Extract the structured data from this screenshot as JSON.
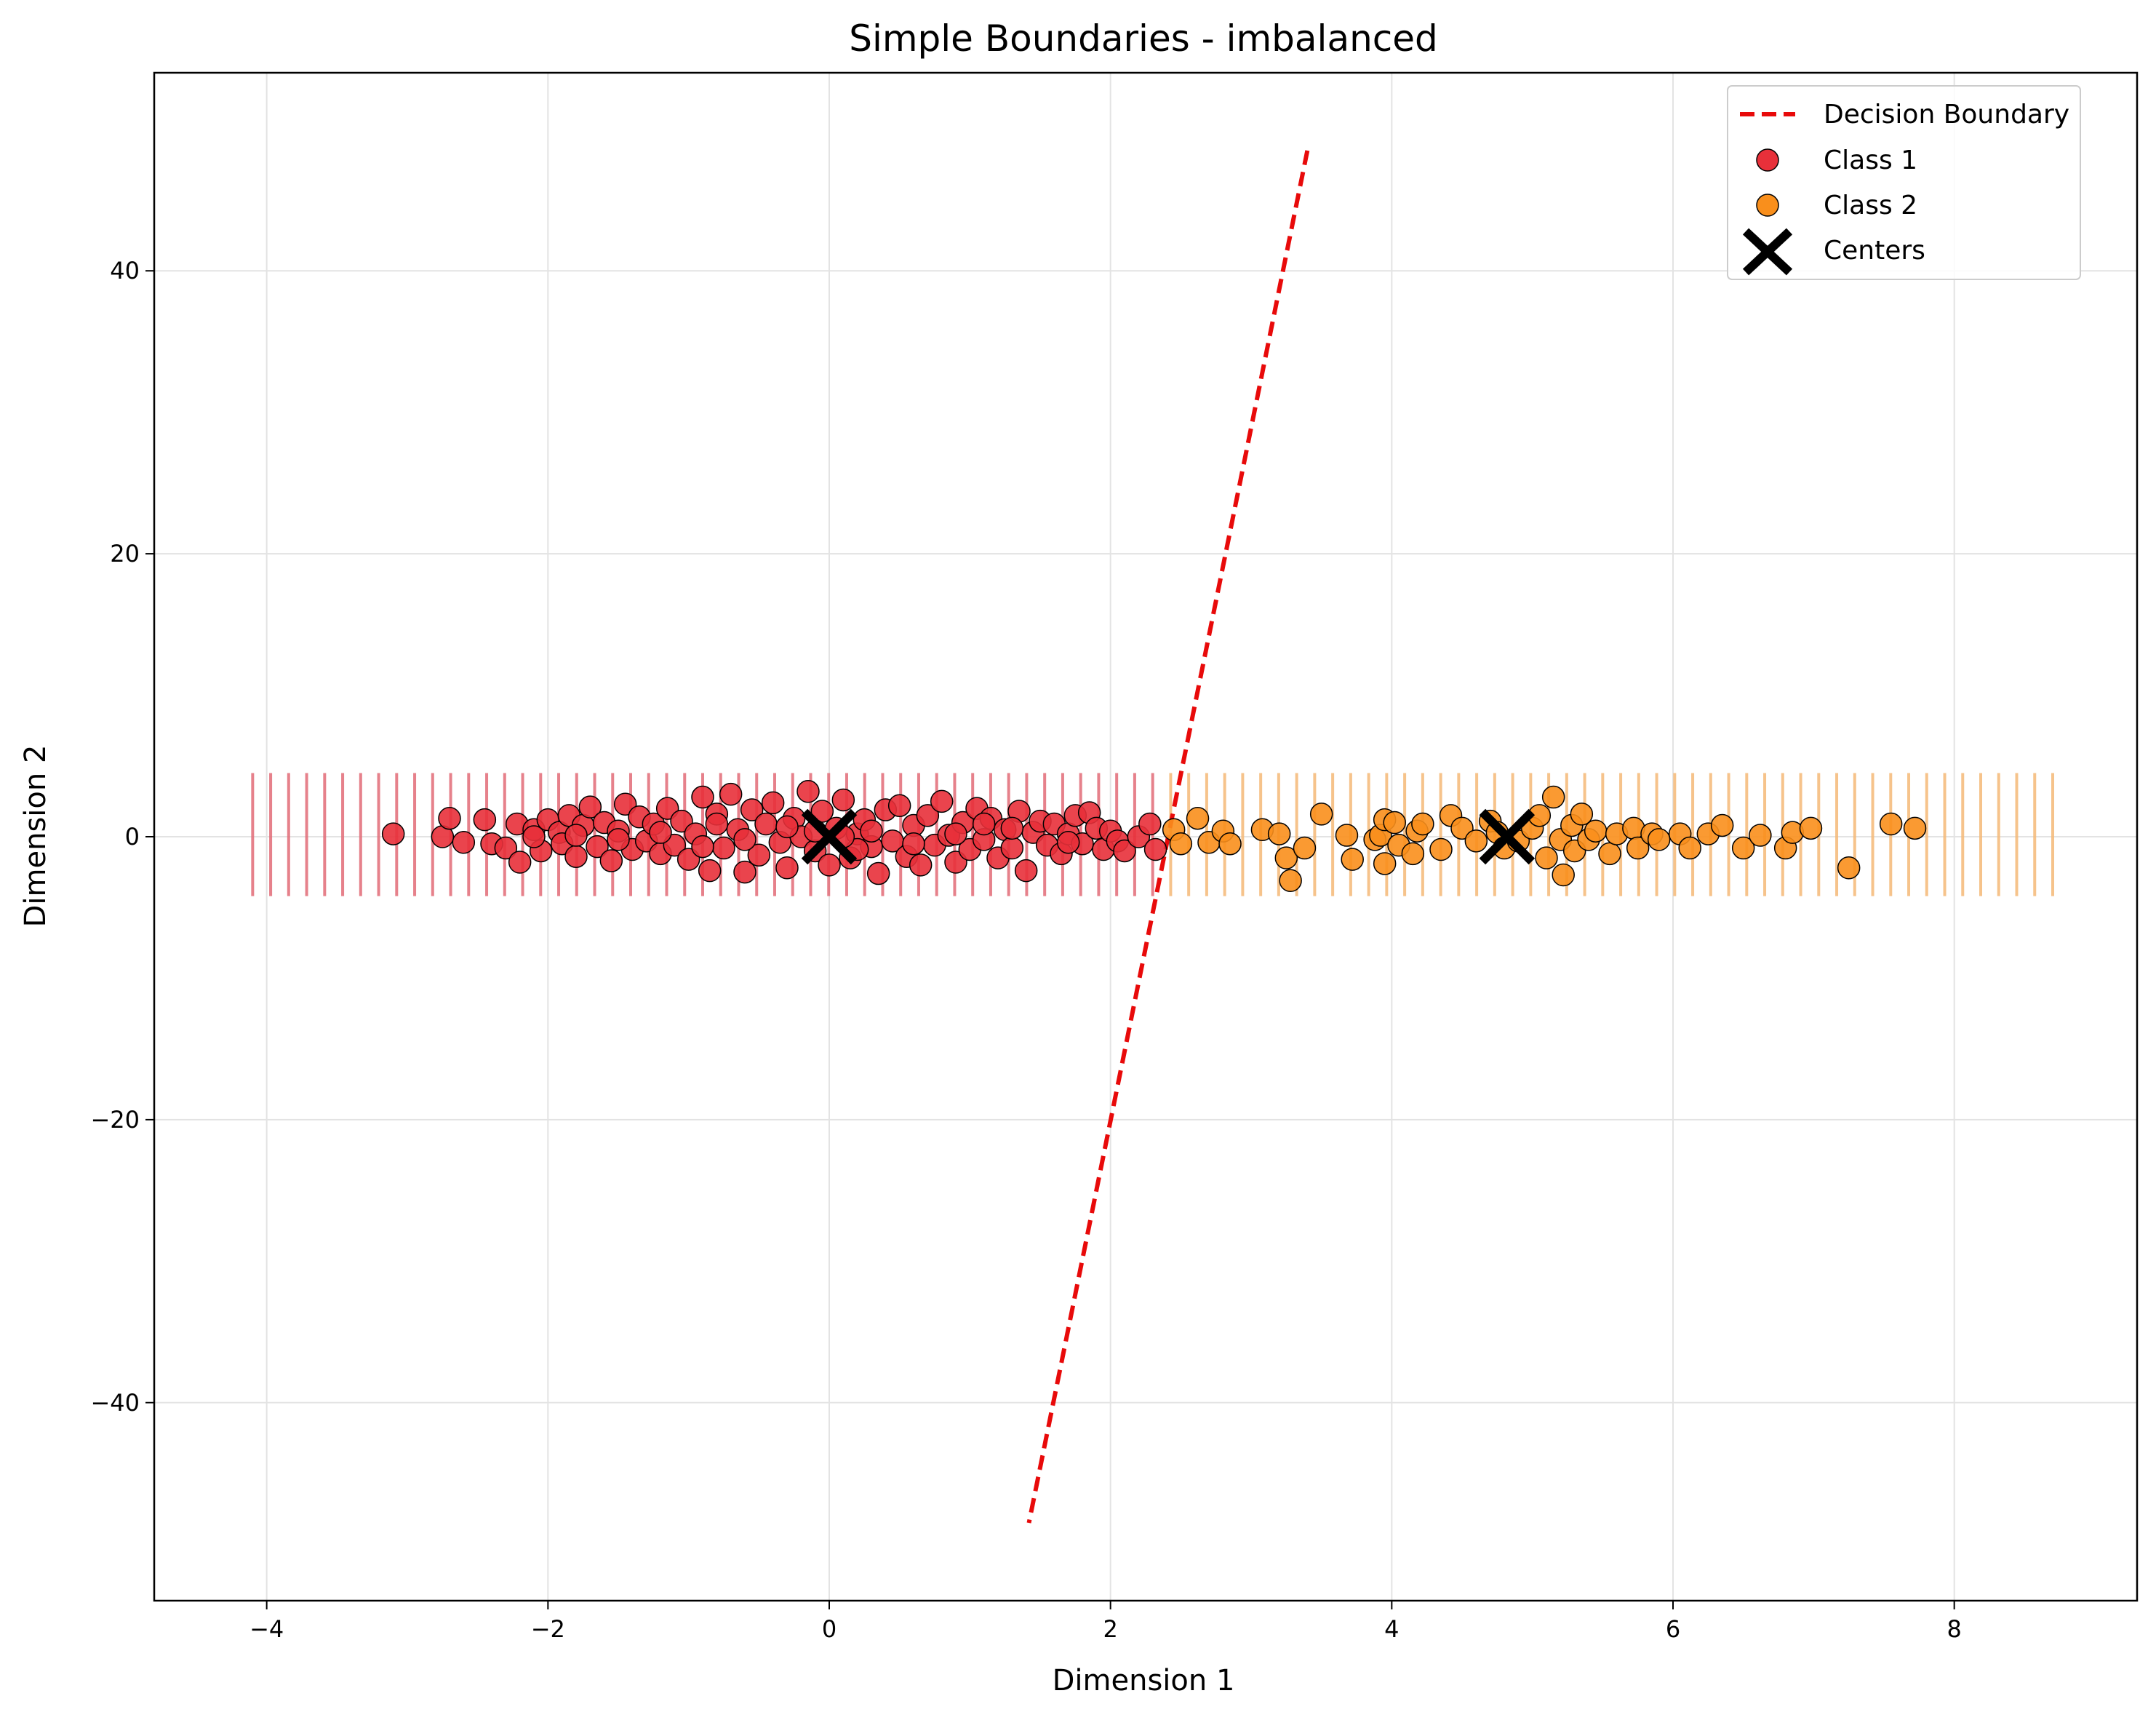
{
  "chart_data": {
    "type": "scatter",
    "title": "Simple Boundaries - imbalanced",
    "xlabel": "Dimension 1",
    "ylabel": "Dimension 2",
    "xlim": [
      -4.8,
      9.3
    ],
    "ylim": [
      -54,
      54
    ],
    "xticks": [
      -4,
      -2,
      0,
      2,
      4,
      6,
      8
    ],
    "yticks": [
      -40,
      -20,
      0,
      20,
      40
    ],
    "xtick_labels": [
      "−4",
      "−2",
      "0",
      "2",
      "4",
      "6",
      "8"
    ],
    "ytick_labels": [
      "−40",
      "−20",
      "0",
      "20",
      "40"
    ],
    "grid": true,
    "legend_position": "top-right",
    "region_shading": {
      "x_start": -4.1,
      "x_end": 8.7,
      "y_min": -4.2,
      "y_max": 4.5,
      "class1_until": 2.4,
      "class1_color": "#e26b77",
      "class2_color": "#f5b877"
    },
    "boundary": {
      "name": "Decision Boundary",
      "color": "#e80a0a",
      "points": [
        [
          3.4,
          48.5
        ],
        [
          1.42,
          -48.5
        ]
      ]
    },
    "series": [
      {
        "name": "Class 1",
        "color": "#e8303a",
        "points": [
          [
            -3.1,
            0.2
          ],
          [
            -2.75,
            0.0
          ],
          [
            -2.7,
            1.3
          ],
          [
            -2.6,
            -0.4
          ],
          [
            -2.45,
            1.2
          ],
          [
            -2.4,
            -0.5
          ],
          [
            -2.3,
            -0.8
          ],
          [
            -2.22,
            0.9
          ],
          [
            -2.2,
            -1.8
          ],
          [
            -2.1,
            0.5
          ],
          [
            -2.05,
            -1.0
          ],
          [
            -2.0,
            1.2
          ],
          [
            -1.92,
            0.3
          ],
          [
            -1.9,
            -0.5
          ],
          [
            -1.85,
            1.5
          ],
          [
            -1.8,
            -1.4
          ],
          [
            -1.75,
            0.8
          ],
          [
            -1.7,
            2.1
          ],
          [
            -1.65,
            -0.7
          ],
          [
            -1.6,
            1.0
          ],
          [
            -1.55,
            -1.7
          ],
          [
            -1.5,
            0.4
          ],
          [
            -1.45,
            2.3
          ],
          [
            -1.4,
            -0.9
          ],
          [
            -1.35,
            1.4
          ],
          [
            -1.3,
            -0.3
          ],
          [
            -1.25,
            0.9
          ],
          [
            -1.2,
            -1.2
          ],
          [
            -1.15,
            2.0
          ],
          [
            -1.1,
            -0.6
          ],
          [
            -1.05,
            1.1
          ],
          [
            -1.0,
            -1.6
          ],
          [
            -0.95,
            0.2
          ],
          [
            -0.9,
            2.8
          ],
          [
            -0.85,
            -2.4
          ],
          [
            -0.8,
            1.6
          ],
          [
            -0.75,
            -0.8
          ],
          [
            -0.7,
            3.0
          ],
          [
            -0.65,
            0.5
          ],
          [
            -0.6,
            -2.5
          ],
          [
            -0.55,
            1.9
          ],
          [
            -0.5,
            -1.3
          ],
          [
            -0.45,
            0.9
          ],
          [
            -0.4,
            2.4
          ],
          [
            -0.35,
            -0.4
          ],
          [
            -0.3,
            -2.2
          ],
          [
            -0.25,
            1.3
          ],
          [
            -0.2,
            0.0
          ],
          [
            -0.15,
            3.2
          ],
          [
            -0.1,
            -1.0
          ],
          [
            -0.05,
            1.8
          ],
          [
            0.0,
            -2.0
          ],
          [
            0.05,
            0.6
          ],
          [
            0.1,
            2.6
          ],
          [
            0.15,
            -1.5
          ],
          [
            0.2,
            0.2
          ],
          [
            0.25,
            1.2
          ],
          [
            0.3,
            -0.7
          ],
          [
            0.35,
            -2.6
          ],
          [
            0.4,
            1.9
          ],
          [
            0.45,
            -0.3
          ],
          [
            0.5,
            2.2
          ],
          [
            0.55,
            -1.4
          ],
          [
            0.6,
            0.8
          ],
          [
            0.65,
            -2.0
          ],
          [
            0.7,
            1.5
          ],
          [
            0.75,
            -0.6
          ],
          [
            0.8,
            2.5
          ],
          [
            0.85,
            0.1
          ],
          [
            0.9,
            -1.8
          ],
          [
            0.95,
            1.0
          ],
          [
            1.0,
            -0.9
          ],
          [
            1.05,
            2.0
          ],
          [
            1.1,
            -0.2
          ],
          [
            1.15,
            1.3
          ],
          [
            1.2,
            -1.5
          ],
          [
            1.25,
            0.5
          ],
          [
            1.3,
            -0.8
          ],
          [
            1.35,
            1.8
          ],
          [
            1.4,
            -2.4
          ],
          [
            1.45,
            0.3
          ],
          [
            1.5,
            1.1
          ],
          [
            1.55,
            -0.6
          ],
          [
            1.6,
            0.9
          ],
          [
            1.65,
            -1.2
          ],
          [
            1.7,
            0.2
          ],
          [
            1.75,
            1.5
          ],
          [
            1.8,
            -0.5
          ],
          [
            1.85,
            1.7
          ],
          [
            1.9,
            0.6
          ],
          [
            1.95,
            -0.9
          ],
          [
            2.0,
            0.4
          ],
          [
            2.05,
            -0.3
          ],
          [
            2.1,
            -1.0
          ],
          [
            2.2,
            0.0
          ],
          [
            2.28,
            0.9
          ],
          [
            2.32,
            -0.9
          ],
          [
            -1.8,
            0.1
          ],
          [
            -1.2,
            0.3
          ],
          [
            -0.6,
            -0.2
          ],
          [
            0.3,
            0.4
          ],
          [
            0.9,
            0.2
          ],
          [
            1.3,
            0.6
          ],
          [
            -0.3,
            0.7
          ],
          [
            0.6,
            -0.5
          ],
          [
            -1.5,
            -0.2
          ],
          [
            -0.9,
            -0.7
          ],
          [
            1.1,
            0.9
          ],
          [
            -2.1,
            0.0
          ],
          [
            1.7,
            -0.4
          ],
          [
            0.2,
            -0.9
          ],
          [
            -0.8,
            0.9
          ],
          [
            0.1,
            0.0
          ],
          [
            -0.1,
            0.4
          ]
        ]
      },
      {
        "name": "Class 2",
        "color": "#f98f1c",
        "points": [
          [
            2.45,
            0.5
          ],
          [
            2.5,
            -0.5
          ],
          [
            2.62,
            1.3
          ],
          [
            2.7,
            -0.4
          ],
          [
            2.8,
            0.4
          ],
          [
            2.85,
            -0.5
          ],
          [
            3.08,
            0.5
          ],
          [
            3.2,
            0.2
          ],
          [
            3.25,
            -1.5
          ],
          [
            3.28,
            -3.1
          ],
          [
            3.38,
            -0.8
          ],
          [
            3.5,
            1.6
          ],
          [
            3.68,
            0.1
          ],
          [
            3.72,
            -1.6
          ],
          [
            3.88,
            -0.2
          ],
          [
            3.92,
            0.1
          ],
          [
            3.95,
            -1.9
          ],
          [
            3.95,
            1.2
          ],
          [
            4.02,
            1.0
          ],
          [
            4.05,
            -0.6
          ],
          [
            4.15,
            -1.2
          ],
          [
            4.18,
            0.4
          ],
          [
            4.22,
            0.9
          ],
          [
            4.35,
            -0.9
          ],
          [
            4.42,
            1.5
          ],
          [
            4.5,
            0.6
          ],
          [
            4.6,
            -0.3
          ],
          [
            4.7,
            1.1
          ],
          [
            4.75,
            0.3
          ],
          [
            4.8,
            -0.8
          ],
          [
            4.9,
            -0.3
          ],
          [
            5.0,
            0.6
          ],
          [
            5.05,
            1.5
          ],
          [
            5.1,
            -1.5
          ],
          [
            5.15,
            2.8
          ],
          [
            5.2,
            -0.2
          ],
          [
            5.22,
            -2.7
          ],
          [
            5.28,
            0.8
          ],
          [
            5.3,
            -1.0
          ],
          [
            5.35,
            1.6
          ],
          [
            5.4,
            -0.2
          ],
          [
            5.45,
            0.4
          ],
          [
            5.55,
            -1.2
          ],
          [
            5.6,
            0.2
          ],
          [
            5.72,
            0.6
          ],
          [
            5.75,
            -0.8
          ],
          [
            5.85,
            0.2
          ],
          [
            5.9,
            -0.2
          ],
          [
            6.05,
            0.2
          ],
          [
            6.12,
            -0.8
          ],
          [
            6.25,
            0.2
          ],
          [
            6.35,
            0.8
          ],
          [
            6.5,
            -0.8
          ],
          [
            6.62,
            0.1
          ],
          [
            6.8,
            -0.8
          ],
          [
            6.85,
            0.3
          ],
          [
            6.98,
            0.6
          ],
          [
            7.25,
            -2.2
          ],
          [
            7.55,
            0.9
          ],
          [
            7.72,
            0.6
          ]
        ]
      }
    ],
    "centers": {
      "name": "Centers",
      "points": [
        [
          0.0,
          0.0
        ],
        [
          4.82,
          0.0
        ]
      ]
    }
  }
}
